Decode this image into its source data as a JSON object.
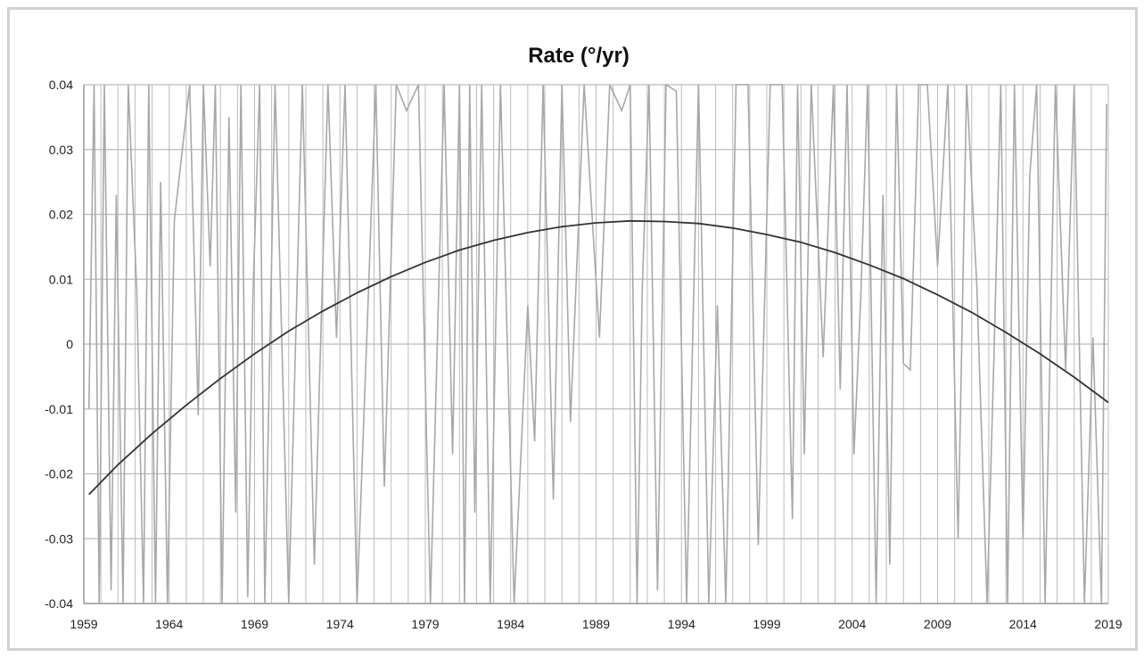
{
  "chart_data": {
    "type": "line",
    "title": "Rate (°/yr)",
    "xlabel": "",
    "ylabel": "",
    "xlim": [
      1959,
      2019
    ],
    "ylim": [
      -0.04,
      0.04
    ],
    "x_ticks": [
      1959,
      1964,
      1969,
      1974,
      1979,
      1984,
      1989,
      1994,
      1999,
      2004,
      2009,
      2014,
      2019
    ],
    "y_ticks": [
      0.04,
      0.03,
      0.02,
      0.01,
      0,
      -0.01,
      -0.02,
      -0.03,
      -0.04
    ],
    "y_tick_labels": [
      "0.04",
      "0.03",
      "0.02",
      "0.01",
      "0",
      "-0.01",
      "-0.02",
      "-0.03",
      "-0.04"
    ],
    "grid": true,
    "legend": "none",
    "series": [
      {
        "style": "thin-gray-oscillating",
        "color": "#a8a8a8",
        "x": [
          1959.3,
          1959.6,
          1959.9,
          1960.2,
          1960.6,
          1960.9,
          1961.3,
          1961.6,
          1962.1,
          1962.5,
          1962.8,
          1963.2,
          1963.5,
          1963.9,
          1964.3,
          1965.2,
          1965.7,
          1966.0,
          1966.4,
          1966.7,
          1967.1,
          1967.5,
          1967.9,
          1968.2,
          1968.6,
          1968.9,
          1969.3,
          1969.6,
          1970.2,
          1971.0,
          1971.8,
          1972.5,
          1973.3,
          1973.8,
          1974.3,
          1975.0,
          1975.6,
          1976.1,
          1976.6,
          1977.3,
          1977.9,
          1978.6,
          1979.3,
          1980.1,
          1980.6,
          1981.0,
          1981.3,
          1981.6,
          1981.9,
          1982.3,
          1982.8,
          1983.4,
          1984.2,
          1985.0,
          1985.4,
          1985.9,
          1986.5,
          1987.0,
          1987.5,
          1988.3,
          1989.2,
          1989.8,
          1990.5,
          1991.0,
          1991.4,
          1991.7,
          1992.1,
          1992.6,
          1993.1,
          1993.7,
          1994.3,
          1995.0,
          1995.6,
          1996.1,
          1996.6,
          1997.2,
          1997.9,
          1998.5,
          1999.2,
          1999.9,
          2000.5,
          2000.8,
          2001.2,
          2001.6,
          2002.3,
          2002.9,
          2003.3,
          2003.7,
          2004.1,
          2004.5,
          2004.9,
          2005.4,
          2005.8,
          2006.2,
          2006.6,
          2007.0,
          2007.4,
          2007.9,
          2008.4,
          2009.0,
          2009.6,
          2010.2,
          2010.7,
          2011.3,
          2011.9,
          2012.3,
          2012.7,
          2013.1,
          2013.5,
          2014.0,
          2014.4,
          2014.8,
          2015.3,
          2015.9,
          2016.5,
          2017.0,
          2017.6,
          2018.1,
          2018.6,
          2018.9
        ],
        "y": [
          -0.01,
          0.04,
          -0.04,
          0.04,
          -0.038,
          0.023,
          -0.04,
          0.04,
          0.008,
          -0.04,
          0.04,
          -0.04,
          0.025,
          -0.04,
          0.019,
          0.04,
          -0.011,
          0.04,
          0.012,
          0.04,
          -0.04,
          0.035,
          -0.026,
          0.04,
          -0.039,
          0.007,
          0.04,
          -0.04,
          0.04,
          -0.04,
          0.04,
          -0.034,
          0.04,
          0.001,
          0.04,
          -0.04,
          0.003,
          0.04,
          -0.022,
          0.04,
          0.036,
          0.04,
          -0.04,
          0.04,
          -0.017,
          0.04,
          -0.04,
          0.04,
          -0.026,
          0.04,
          -0.04,
          0.04,
          -0.04,
          0.006,
          -0.015,
          0.04,
          -0.024,
          0.04,
          -0.012,
          0.04,
          0.001,
          0.04,
          0.036,
          0.04,
          -0.04,
          0.008,
          0.04,
          -0.038,
          0.04,
          0.039,
          -0.04,
          0.04,
          -0.04,
          0.006,
          -0.04,
          0.04,
          0.04,
          -0.031,
          0.04,
          0.04,
          -0.027,
          0.04,
          -0.017,
          0.04,
          -0.002,
          0.04,
          -0.007,
          0.04,
          -0.017,
          0.007,
          0.04,
          -0.04,
          0.023,
          -0.034,
          0.04,
          -0.003,
          -0.004,
          0.04,
          0.04,
          0.012,
          0.04,
          -0.03,
          0.04,
          0.009,
          -0.04,
          -0.002,
          0.04,
          -0.04,
          0.04,
          -0.03,
          0.026,
          0.04,
          -0.04,
          0.04,
          -0.004,
          0.04,
          -0.04,
          0.001,
          -0.04,
          0.037
        ]
      },
      {
        "style": "dark-trend-curve",
        "color": "#333333",
        "x": [
          1959.3,
          1961,
          1963,
          1965,
          1967,
          1969,
          1971,
          1973,
          1975,
          1977,
          1979,
          1981,
          1983,
          1985,
          1987,
          1989,
          1991,
          1993,
          1995,
          1997,
          1999,
          2001,
          2003,
          2005,
          2007,
          2009,
          2011,
          2013,
          2015,
          2017,
          2019
        ],
        "y": [
          -0.0232,
          -0.0186,
          -0.0138,
          -0.0094,
          -0.0053,
          -0.0015,
          0.002,
          0.0051,
          0.0079,
          0.0104,
          0.0126,
          0.0145,
          0.016,
          0.0172,
          0.0181,
          0.0187,
          0.019,
          0.0189,
          0.0186,
          0.0179,
          0.0169,
          0.0157,
          0.0141,
          0.0122,
          0.0101,
          0.0076,
          0.0049,
          0.0018,
          -0.0015,
          -0.0051,
          -0.009
        ]
      }
    ],
    "colors": {
      "grid": "#bcbcbc",
      "frame": "#d2d2d2",
      "axis": "#9a9a9a"
    }
  }
}
